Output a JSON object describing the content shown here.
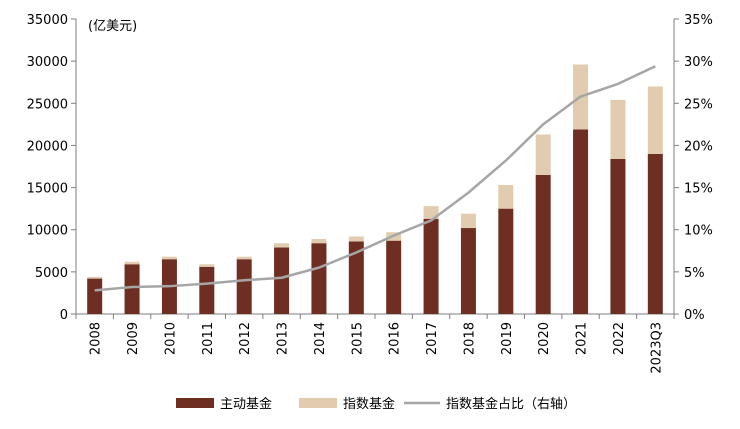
{
  "chart_data": {
    "type": "bar",
    "stacked": true,
    "unit_label": "(亿美元)",
    "categories": [
      "2008",
      "2009",
      "2010",
      "2011",
      "2012",
      "2013",
      "2014",
      "2015",
      "2016",
      "2017",
      "2018",
      "2019",
      "2020",
      "2021",
      "2022",
      "2023Q3"
    ],
    "series": [
      {
        "name": "主动基金",
        "type": "bar",
        "axis": "left",
        "color": "#6e2f22",
        "values": [
          4200,
          5900,
          6500,
          5600,
          6500,
          7900,
          8400,
          8600,
          8700,
          11300,
          10200,
          12500,
          16500,
          21900,
          18400,
          19000
        ]
      },
      {
        "name": "指数基金",
        "type": "bar",
        "axis": "left",
        "color": "#e2ccb0",
        "values": [
          200,
          300,
          300,
          300,
          300,
          500,
          500,
          600,
          1000,
          1500,
          1700,
          2800,
          4800,
          7700,
          7000,
          8000
        ]
      },
      {
        "name": "指数基金占比（右轴）",
        "type": "line",
        "axis": "right",
        "color": "#a6a6a6",
        "values": [
          2.8,
          3.2,
          3.3,
          3.6,
          4.0,
          4.3,
          5.5,
          7.3,
          9.3,
          11.1,
          14.4,
          18.2,
          22.5,
          25.8,
          27.3,
          29.4
        ]
      }
    ],
    "left_axis": {
      "min": 0,
      "max": 35000,
      "ticks": [
        "0",
        "5000",
        "10000",
        "15000",
        "20000",
        "25000",
        "30000",
        "35000"
      ]
    },
    "right_axis": {
      "min": 0,
      "max": 35,
      "ticks": [
        "0%",
        "5%",
        "10%",
        "15%",
        "20%",
        "25%",
        "30%",
        "35%"
      ]
    },
    "grid": false,
    "legend_position": "bottom"
  }
}
